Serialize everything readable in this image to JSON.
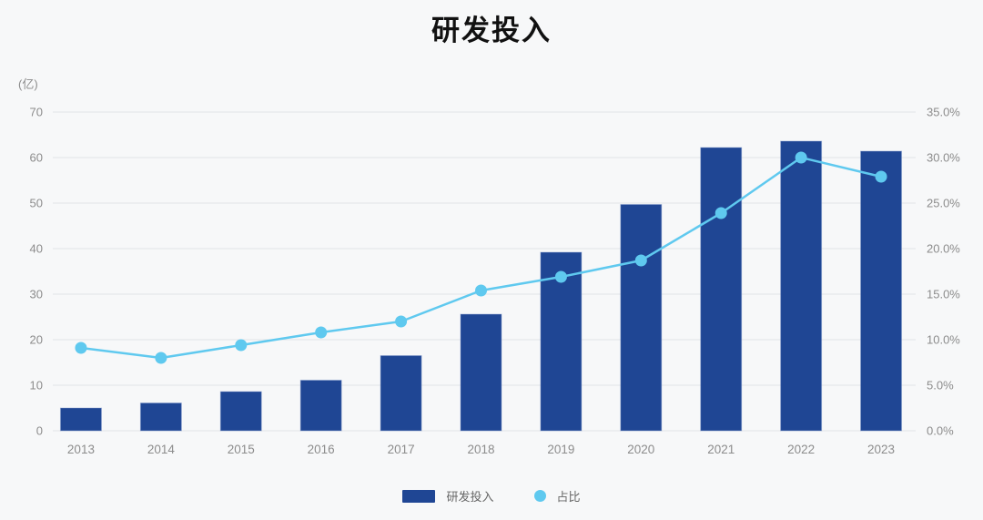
{
  "title": "研发投入",
  "unit_label": "(亿)",
  "colors": {
    "background": "#f7f8f9",
    "bar": "#1f4694",
    "bar_border": "#8099cc",
    "line": "#5fc9ef",
    "grid": "#e2e3e6",
    "tick_text": "#8c8c8c",
    "title_text": "#111111",
    "legend_text": "#666666"
  },
  "chart_data": {
    "type": "bar",
    "subtype": "bar+line combo, dual y-axis",
    "title": "研发投入",
    "categories": [
      "2013",
      "2014",
      "2015",
      "2016",
      "2017",
      "2018",
      "2019",
      "2020",
      "2021",
      "2022",
      "2023"
    ],
    "series": [
      {
        "name": "研发投入",
        "type": "bar",
        "axis": "left",
        "unit": "亿",
        "values": [
          5.0,
          6.1,
          8.6,
          11.1,
          16.5,
          25.6,
          39.2,
          49.7,
          62.2,
          63.6,
          61.4
        ]
      },
      {
        "name": "占比",
        "type": "line",
        "axis": "right",
        "unit": "%",
        "values": [
          9.1,
          8.0,
          9.4,
          10.8,
          12.0,
          15.4,
          16.9,
          18.7,
          23.9,
          30.0,
          27.9
        ]
      }
    ],
    "left_axis": {
      "label": "(亿)",
      "min": 0,
      "max": 70,
      "step": 10,
      "ticks": [
        "0",
        "10",
        "20",
        "30",
        "40",
        "50",
        "60",
        "70"
      ]
    },
    "right_axis": {
      "min": 0,
      "max": 35,
      "step": 5,
      "ticks": [
        "0.0%",
        "5.0%",
        "10.0%",
        "15.0%",
        "20.0%",
        "25.0%",
        "30.0%",
        "35.0%"
      ]
    },
    "grid": true,
    "legend_position": "bottom"
  },
  "legend": {
    "items": [
      {
        "label": "研发投入",
        "swatch": "bar"
      },
      {
        "label": "占比",
        "swatch": "dot"
      }
    ]
  }
}
